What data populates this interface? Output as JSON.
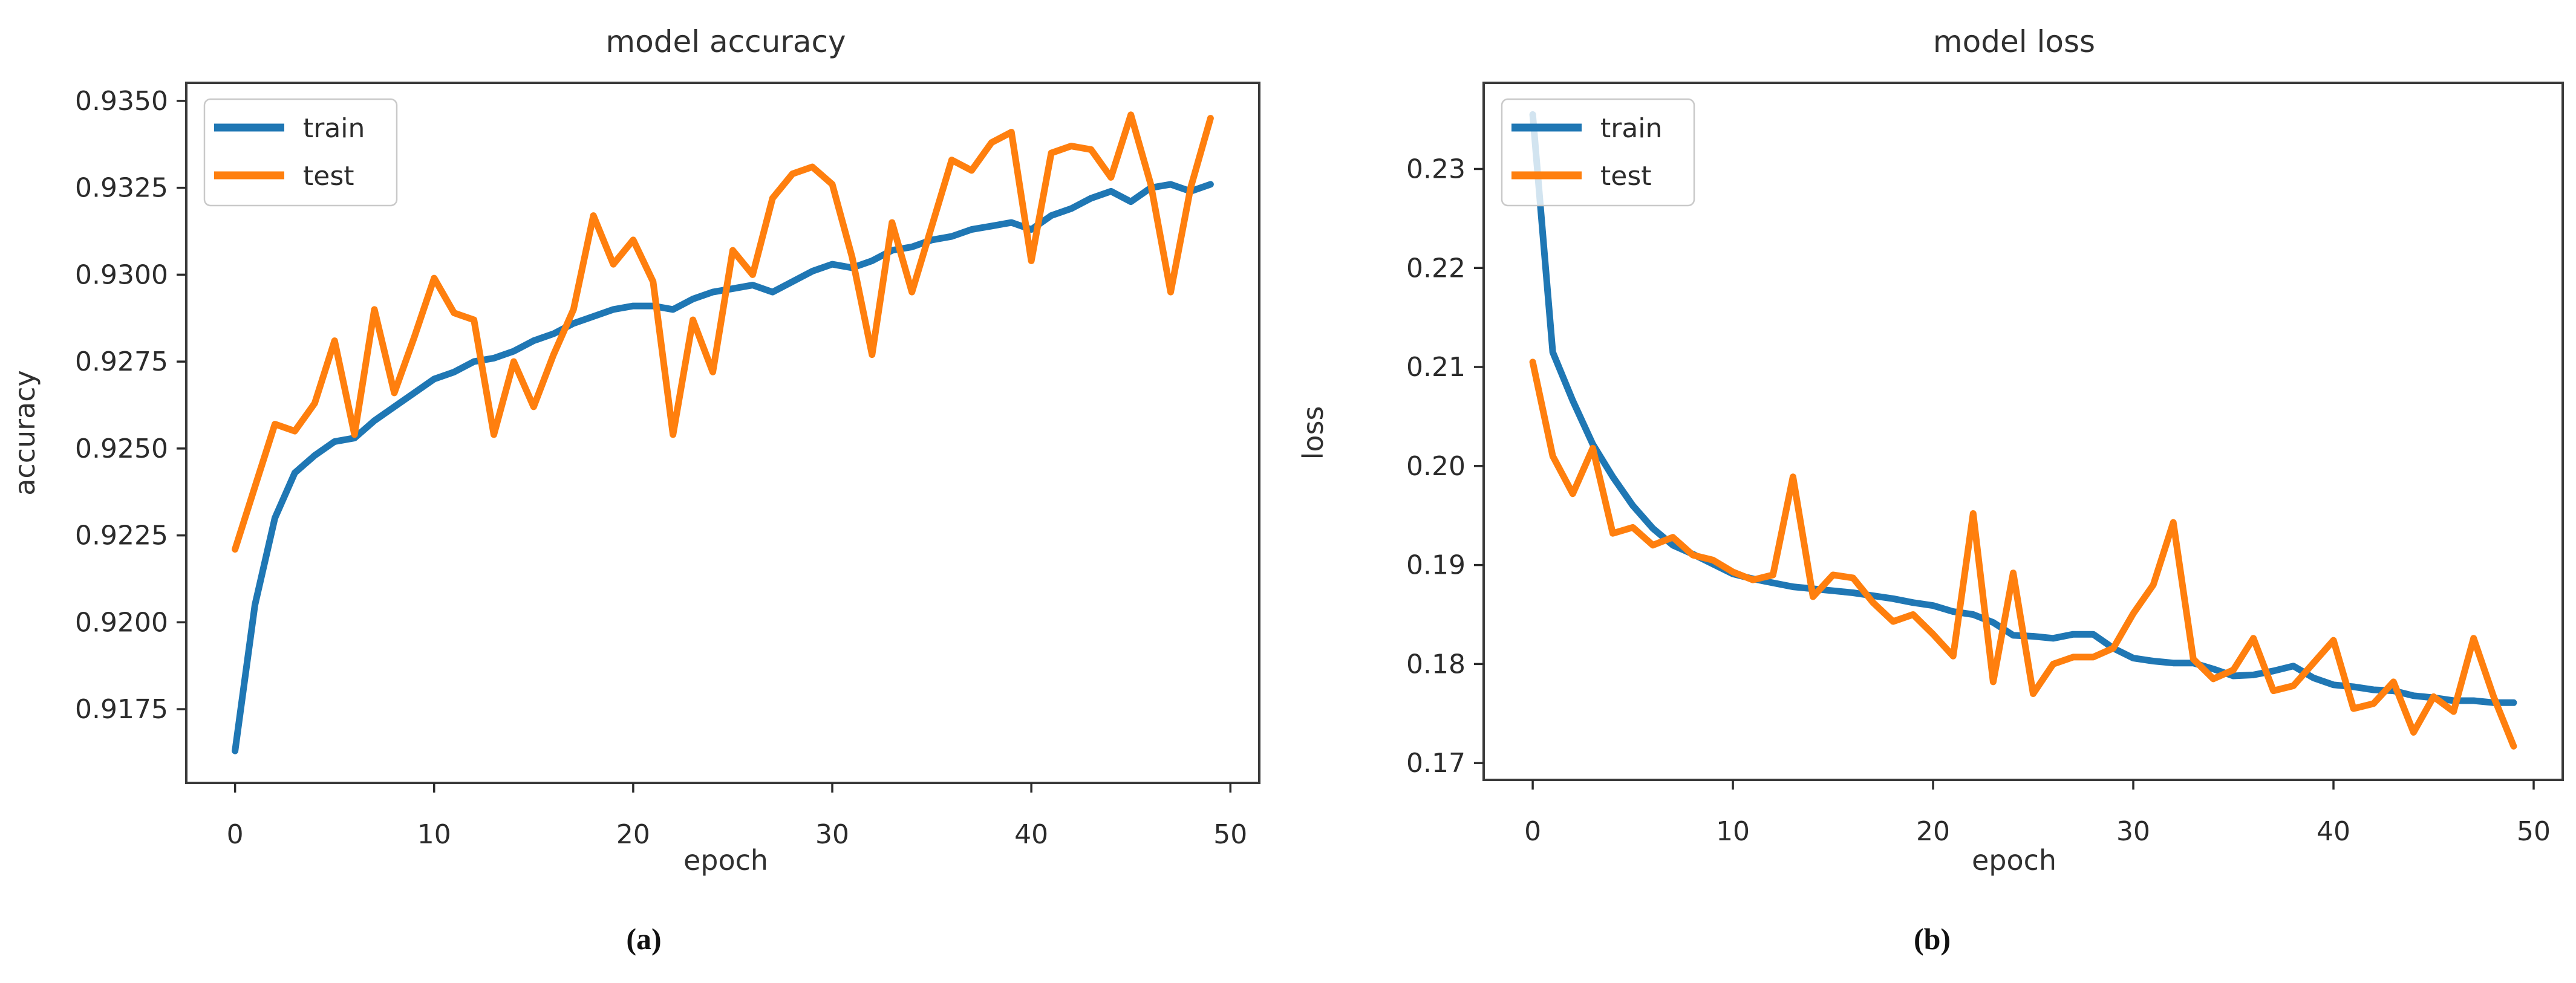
{
  "page": {
    "background": "#ffffff"
  },
  "figures": [
    {
      "caption": "(a)"
    },
    {
      "caption": "(b)"
    }
  ],
  "style": {
    "train_color": "#1f77b4",
    "test_color": "#ff7f0e",
    "spine_color": "#3a3a3a",
    "tick_color": "#2b2b2b",
    "legend_border_color": "#c9c9c9"
  },
  "chart_data": [
    {
      "type": "line",
      "title": "model accuracy",
      "xlabel": "epoch",
      "ylabel": "accuracy",
      "legend_position": "upper left",
      "grid": false,
      "x": [
        0,
        1,
        2,
        3,
        4,
        5,
        6,
        7,
        8,
        9,
        10,
        11,
        12,
        13,
        14,
        15,
        16,
        17,
        18,
        19,
        20,
        21,
        22,
        23,
        24,
        25,
        26,
        27,
        28,
        29,
        30,
        31,
        32,
        33,
        34,
        35,
        36,
        37,
        38,
        39,
        40,
        41,
        42,
        43,
        44,
        45,
        46,
        47,
        48,
        49
      ],
      "xlim": [
        -2.45,
        51.45
      ],
      "ylim": [
        0.91538,
        0.93552
      ],
      "xticks": [
        0,
        10,
        20,
        30,
        40,
        50
      ],
      "xtick_labels": [
        "0",
        "10",
        "20",
        "30",
        "40",
        "50"
      ],
      "yticks": [
        0.9175,
        0.92,
        0.9225,
        0.925,
        0.9275,
        0.93,
        0.9325,
        0.935
      ],
      "ytick_labels": [
        "0.9175",
        "0.9200",
        "0.9225",
        "0.9250",
        "0.9275",
        "0.9300",
        "0.9325",
        "0.9350"
      ],
      "series": [
        {
          "name": "train",
          "color": "#1f77b4",
          "values": [
            0.9163,
            0.9205,
            0.923,
            0.9243,
            0.9248,
            0.9252,
            0.9253,
            0.9258,
            0.9262,
            0.9266,
            0.927,
            0.9272,
            0.9275,
            0.9276,
            0.9278,
            0.9281,
            0.9283,
            0.9286,
            0.9288,
            0.929,
            0.9291,
            0.9291,
            0.929,
            0.9293,
            0.9295,
            0.9296,
            0.9297,
            0.9295,
            0.9298,
            0.9301,
            0.9303,
            0.9302,
            0.9304,
            0.9307,
            0.9308,
            0.931,
            0.9311,
            0.9313,
            0.9314,
            0.9315,
            0.9313,
            0.9317,
            0.9319,
            0.9322,
            0.9324,
            0.9321,
            0.9325,
            0.9326,
            0.9324,
            0.9326
          ]
        },
        {
          "name": "test",
          "color": "#ff7f0e",
          "values": [
            0.9221,
            0.9239,
            0.9257,
            0.9255,
            0.9263,
            0.9281,
            0.9254,
            0.929,
            0.9266,
            0.9282,
            0.9299,
            0.9289,
            0.9287,
            0.9254,
            0.9275,
            0.9262,
            0.9277,
            0.929,
            0.9317,
            0.9303,
            0.931,
            0.9298,
            0.9254,
            0.9287,
            0.9272,
            0.9307,
            0.93,
            0.9322,
            0.9329,
            0.9331,
            0.9326,
            0.9305,
            0.9277,
            0.9315,
            0.9295,
            0.9314,
            0.9333,
            0.933,
            0.9338,
            0.9341,
            0.9304,
            0.9335,
            0.9337,
            0.9336,
            0.9328,
            0.9346,
            0.9326,
            0.9295,
            0.9325,
            0.9345
          ]
        }
      ]
    },
    {
      "type": "line",
      "title": "model loss",
      "xlabel": "epoch",
      "ylabel": "loss",
      "legend_position": "upper left",
      "grid": false,
      "x": [
        0,
        1,
        2,
        3,
        4,
        5,
        6,
        7,
        8,
        9,
        10,
        11,
        12,
        13,
        14,
        15,
        16,
        17,
        18,
        19,
        20,
        21,
        22,
        23,
        24,
        25,
        26,
        27,
        28,
        29,
        30,
        31,
        32,
        33,
        34,
        35,
        36,
        37,
        38,
        39,
        40,
        41,
        42,
        43,
        44,
        45,
        46,
        47,
        48,
        49
      ],
      "xlim": [
        -2.45,
        51.45
      ],
      "ylim": [
        0.1683,
        0.2387
      ],
      "xticks": [
        0,
        10,
        20,
        30,
        40,
        50
      ],
      "xtick_labels": [
        "0",
        "10",
        "20",
        "30",
        "40",
        "50"
      ],
      "yticks": [
        0.17,
        0.18,
        0.19,
        0.2,
        0.21,
        0.22,
        0.23
      ],
      "ytick_labels": [
        "0.17",
        "0.18",
        "0.19",
        "0.20",
        "0.21",
        "0.22",
        "0.23"
      ],
      "series": [
        {
          "name": "train",
          "color": "#1f77b4",
          "values": [
            0.2355,
            0.2115,
            0.2066,
            0.2022,
            0.1989,
            0.196,
            0.1937,
            0.192,
            0.1911,
            0.1901,
            0.1891,
            0.1886,
            0.1882,
            0.1878,
            0.1876,
            0.1874,
            0.1872,
            0.1869,
            0.1866,
            0.1862,
            0.1859,
            0.1853,
            0.185,
            0.1842,
            0.1829,
            0.1828,
            0.1826,
            0.183,
            0.183,
            0.1816,
            0.1806,
            0.1803,
            0.1801,
            0.1801,
            0.1795,
            0.1788,
            0.1789,
            0.1793,
            0.1798,
            0.1786,
            0.1779,
            0.1777,
            0.1774,
            0.1773,
            0.1768,
            0.1766,
            0.1763,
            0.1763,
            0.1761,
            0.1761
          ]
        },
        {
          "name": "test",
          "color": "#ff7f0e",
          "values": [
            0.2105,
            0.201,
            0.1972,
            0.2018,
            0.1932,
            0.1938,
            0.192,
            0.1928,
            0.191,
            0.1905,
            0.1893,
            0.1885,
            0.189,
            0.1989,
            0.1868,
            0.189,
            0.1887,
            0.1862,
            0.1843,
            0.185,
            0.183,
            0.1808,
            0.1952,
            0.1782,
            0.1892,
            0.177,
            0.18,
            0.1807,
            0.1807,
            0.1816,
            0.1851,
            0.188,
            0.1943,
            0.1805,
            0.1785,
            0.1794,
            0.1826,
            0.1773,
            0.1778,
            0.1801,
            0.1824,
            0.1755,
            0.176,
            0.1782,
            0.1731,
            0.1767,
            0.1752,
            0.1826,
            0.1767,
            0.1717
          ]
        }
      ]
    }
  ]
}
